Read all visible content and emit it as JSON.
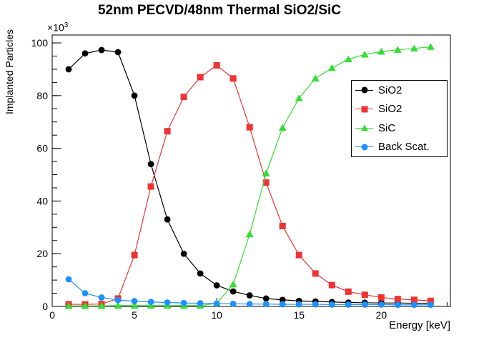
{
  "chart_data": {
    "type": "line",
    "title": "52nm PECVD/48nm Thermal SiO2/SiC",
    "xlabel": "Energy [keV]",
    "ylabel": "Implanted Particles",
    "y_multiplier": {
      "base": "×10",
      "exponent": "3"
    },
    "xlim": [
      0,
      24.2
    ],
    "ylim": [
      0,
      103
    ],
    "x_major_ticks": [
      0,
      5,
      10,
      15,
      20
    ],
    "x_minor_step": 1,
    "y_major_ticks": [
      0,
      20,
      40,
      60,
      80,
      100
    ],
    "y_minor_step": 5,
    "grid": false,
    "legend_position": "middle-right",
    "x": [
      1,
      2,
      3,
      4,
      5,
      6,
      7,
      8,
      9,
      10,
      11,
      12,
      13,
      14,
      15,
      16,
      17,
      18,
      19,
      20,
      21,
      22,
      23
    ],
    "series": [
      {
        "name": "SiO2",
        "marker": "circle",
        "color": "#000000",
        "values": [
          90,
          96,
          97.3,
          96.5,
          80,
          54,
          33,
          20,
          12.5,
          8,
          5.7,
          4.2,
          3,
          2.5,
          2.1,
          1.9,
          1.7,
          1.5,
          1.4,
          1.3,
          1.3,
          1.2,
          1.2
        ]
      },
      {
        "name": "SiO2",
        "marker": "square",
        "color": "#EE3333",
        "values": [
          0.8,
          0.8,
          0.9,
          3,
          19.5,
          45.5,
          66.5,
          79.5,
          87,
          91.5,
          86.5,
          68,
          47,
          30.5,
          19.5,
          12.5,
          8.1,
          5.6,
          4.4,
          3.4,
          2.8,
          2.5,
          2.1
        ]
      },
      {
        "name": "SiC",
        "marker": "triangle",
        "color": "#33DD33",
        "values": [
          0.2,
          0.2,
          0.2,
          0.3,
          0.3,
          0.3,
          0.3,
          0.3,
          0.3,
          1.2,
          8.4,
          27.4,
          50.5,
          67.8,
          79,
          86.5,
          90.5,
          93.8,
          95.6,
          96.7,
          97.4,
          97.9,
          98.5
        ]
      },
      {
        "name": "Back Scat.",
        "marker": "circle",
        "color": "#1E90FF",
        "values": [
          10.3,
          5,
          3.4,
          2.4,
          2,
          1.7,
          1.5,
          1.3,
          1.2,
          1.1,
          1,
          0.9,
          0.9,
          0.8,
          0.8,
          0.8,
          0.7,
          0.7,
          0.7,
          0.7,
          0.6,
          0.6,
          0.6
        ]
      }
    ]
  }
}
